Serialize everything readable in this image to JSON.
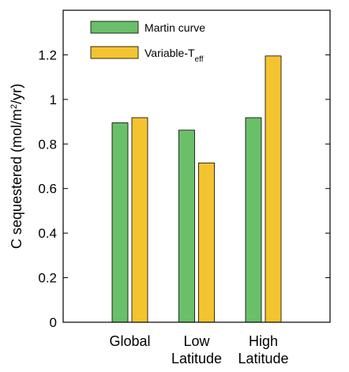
{
  "chart_data": {
    "type": "bar",
    "categories": [
      [
        "Global"
      ],
      [
        "Low",
        "Latitude"
      ],
      [
        "High",
        "Latitude"
      ]
    ],
    "series": [
      {
        "name": "Martin curve",
        "label_parts": [
          "Martin curve"
        ],
        "values": [
          0.895,
          0.862,
          0.918
        ],
        "color": "#6abf69"
      },
      {
        "name": "Variable-Teff",
        "label_parts": [
          "Variable-T",
          "eff"
        ],
        "values": [
          0.918,
          0.715,
          1.195
        ],
        "color": "#f4c430"
      }
    ],
    "ylabel_parts": [
      "C sequestered (mol/m",
      "2",
      "/yr)"
    ],
    "ylim": [
      0,
      1.4
    ],
    "yticks": [
      0,
      0.2,
      0.4,
      0.6,
      0.8,
      1,
      1.2
    ],
    "ytick_labels": [
      "0",
      "0.2",
      "0.4",
      "0.6",
      "0.8",
      "1",
      "1.2"
    ],
    "legend_position": "top-left",
    "grid": false,
    "axis_color": "#000000"
  }
}
